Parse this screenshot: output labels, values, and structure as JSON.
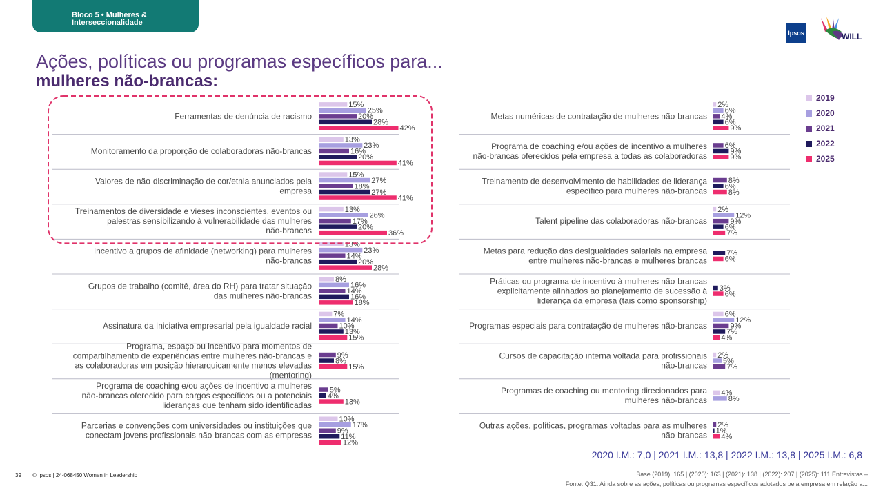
{
  "header": {
    "tab_line1": "Bloco 5 • Mulheres &",
    "tab_line2": "Interseccionalidade",
    "ipsos_logo": "Ipsos",
    "will_logo": "WILL"
  },
  "title": {
    "line1": "Ações, políticas ou programas específicos para...",
    "line2": "mulheres não-brancas:"
  },
  "colors": {
    "2019": "#dcc6ea",
    "2020": "#a79fe0",
    "2021": "#6a3d8f",
    "2022": "#1f1a5c",
    "2025": "#ee2d6e",
    "highlight": "#e0336a",
    "divider": "#bcbcc8"
  },
  "chart_data": {
    "type": "bar",
    "orientation": "horizontal",
    "series_names": [
      "2019",
      "2020",
      "2021",
      "2022",
      "2025"
    ],
    "left_panel": [
      {
        "label": "Ferramentas de denúncia de racismo",
        "values": [
          15,
          25,
          20,
          28,
          42
        ]
      },
      {
        "label": "Monitoramento da proporção de colaboradoras não-brancas",
        "values": [
          13,
          23,
          16,
          20,
          41
        ]
      },
      {
        "label": "Valores de não-discriminação de cor/etnia anunciados pela empresa",
        "values": [
          15,
          27,
          18,
          27,
          41
        ]
      },
      {
        "label": "Treinamentos de diversidade e vieses inconscientes, eventos ou palestras sensibilizando à vulnerabilidade das mulheres não-brancas",
        "values": [
          13,
          26,
          17,
          20,
          36
        ]
      },
      {
        "label": "Incentivo a grupos de afinidade (networking) para mulheres não-brancas",
        "values": [
          13,
          23,
          14,
          20,
          28
        ]
      },
      {
        "label": "Grupos de trabalho (comitê, área do RH) para tratar situação das mulheres não-brancas",
        "values": [
          8,
          16,
          14,
          16,
          18
        ]
      },
      {
        "label": "Assinatura da Iniciativa empresarial pela igualdade racial",
        "values": [
          7,
          14,
          10,
          13,
          15
        ]
      },
      {
        "label": "Programa, espaço ou incentivo para momentos de compartilhamento de experiências entre mulheres não-brancas e as colaboradoras em posição hierarquicamente menos elevadas (mentoring)",
        "values": [
          null,
          null,
          9,
          8,
          15
        ]
      },
      {
        "label": "Programa de coaching e/ou ações de incentivo a mulheres não-brancas oferecido para cargos específicos ou a potenciais lideranças que tenham sido identificadas",
        "values": [
          null,
          null,
          5,
          4,
          13
        ]
      },
      {
        "label": "Parcerias e convenções com universidades ou instituições que conectam jovens profissionais não-brancas com as empresas",
        "values": [
          10,
          17,
          9,
          11,
          12
        ]
      }
    ],
    "right_panel": [
      {
        "label": "Metas numéricas de contratação de mulheres não-brancas",
        "values": [
          2,
          6,
          4,
          6,
          9
        ]
      },
      {
        "label": "Programa de coaching e/ou ações de incentivo a mulheres não-brancas oferecidos pela empresa a todas as colaboradoras",
        "values": [
          null,
          null,
          6,
          9,
          9
        ]
      },
      {
        "label": "Treinamento de desenvolvimento de habilidades de liderança específico para mulheres não-brancas",
        "values": [
          null,
          null,
          8,
          6,
          8
        ]
      },
      {
        "label": "Talent pipeline das colaboradoras não-brancas",
        "values": [
          2,
          12,
          9,
          6,
          7
        ]
      },
      {
        "label": "Metas para redução das desigualdades salariais na empresa entre mulheres não-brancas e mulheres brancas",
        "values": [
          null,
          null,
          null,
          7,
          6
        ]
      },
      {
        "label": "Práticas ou programa de incentivo à mulheres não-brancas explicitamente alinhados ao planejamento de sucessão à liderança da empresa (tais como sponsorship)",
        "values": [
          null,
          null,
          null,
          3,
          6
        ]
      },
      {
        "label": "Programas especiais para contratação de mulheres não-brancas",
        "values": [
          6,
          12,
          9,
          7,
          4
        ]
      },
      {
        "label": "Cursos de capacitação interna voltada para profissionais não-brancas",
        "values": [
          2,
          5,
          7,
          null,
          null
        ]
      },
      {
        "label": "Programas de coaching ou mentoring direcionados para mulheres não-brancas",
        "values": [
          4,
          8,
          null,
          null,
          null
        ]
      },
      {
        "label": "Outras ações, políticas, programas voltadas para as mulheres não-brancas",
        "values": [
          null,
          null,
          2,
          1,
          4
        ]
      }
    ],
    "highlighted_items": [
      0,
      1,
      2,
      3
    ],
    "value_suffix": "%"
  },
  "im_text": "2020 I.M.: 7,0 | 2021 I.M.: 13,8 | 2022 I.M.: 13,8 | 2025 I.M.: 6,8",
  "base_text": "Base (2019): 165 | (2020): 163 | (2021): 138 | (2022): 207 | (2025): 111 Entrevistas –",
  "source_text": "Fonte: Q31. Ainda sobre as ações, políticas ou programas específicos adotados pela empresa em relação a...",
  "footer": {
    "page": "39",
    "copyright": "© Ipsos | 24-068450 Women in Leadership"
  }
}
